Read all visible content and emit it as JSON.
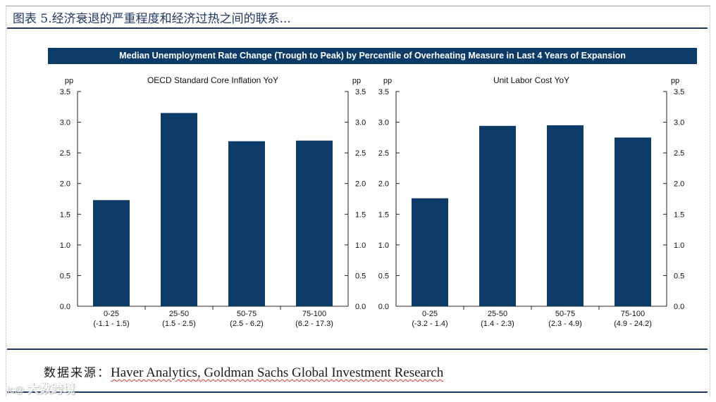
{
  "figure_title": "图表 5.经济衰退的严重程度和经济过热之间的联系...",
  "banner_title": "Median Unemployment Rate Change (Trough to Peak) by Percentile of Overheating Measure in Last 4 Years of Expansion",
  "source": {
    "label": "数据来源：",
    "text": "Haver Analytics, Goldman Sachs Global Investment Research"
  },
  "watermark": {
    "mark": "lc@",
    "text": "大数跨境"
  },
  "colors": {
    "bar": "#0b3b66",
    "banner": "#0b3b66",
    "rule": "#1f3864"
  },
  "chart_data": [
    {
      "type": "bar",
      "title": "OECD Standard Core Inflation YoY",
      "ylabel_left": "pp",
      "ylabel_right": "pp",
      "ylim": [
        0,
        3.5
      ],
      "yticks": [
        "0.0",
        "0.5",
        "1.0",
        "1.5",
        "2.0",
        "2.5",
        "3.0",
        "3.5"
      ],
      "categories": [
        "0-25",
        "25-50",
        "50-75",
        "75-100"
      ],
      "category_ranges": [
        "(-1.1 - 1.5)",
        "(1.5 - 2.5)",
        "(2.5 - 6.2)",
        "(6.2 - 17.3)"
      ],
      "values": [
        1.73,
        3.15,
        2.69,
        2.7
      ]
    },
    {
      "type": "bar",
      "title": "Unit Labor Cost YoY",
      "ylabel_left": "pp",
      "ylabel_right": "pp",
      "ylim": [
        0,
        3.5
      ],
      "yticks": [
        "0.0",
        "0.5",
        "1.0",
        "1.5",
        "2.0",
        "2.5",
        "3.0",
        "3.5"
      ],
      "categories": [
        "0-25",
        "25-50",
        "50-75",
        "75-100"
      ],
      "category_ranges": [
        "(-3.2 - 1.4)",
        "(1.4 - 2.3)",
        "(2.3 - 4.9)",
        "(4.9 - 24.2)"
      ],
      "values": [
        1.76,
        2.94,
        2.95,
        2.75
      ]
    }
  ]
}
